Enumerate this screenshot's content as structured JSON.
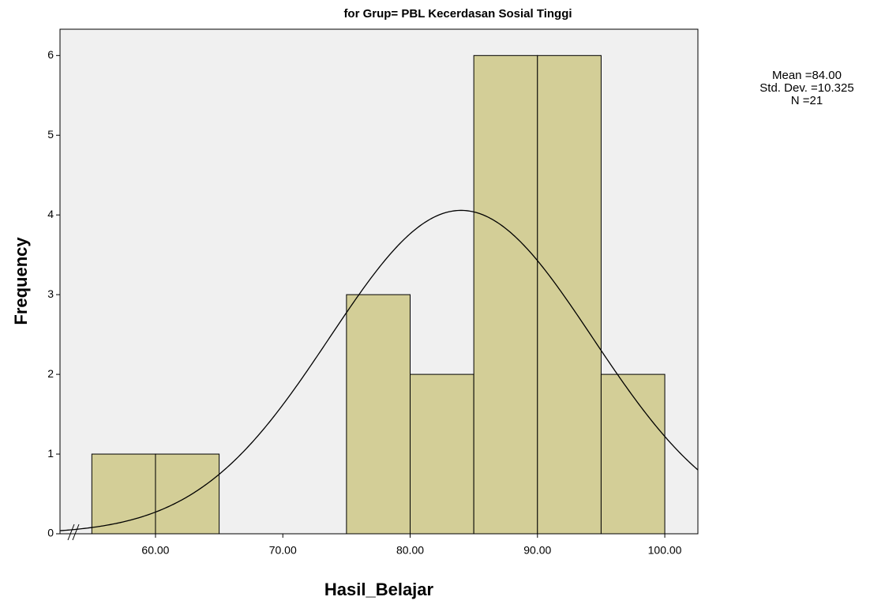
{
  "chart_data": {
    "type": "histogram",
    "title": "for Grup= PBL Kecerdasan Sosial Tinggi",
    "xlabel": "Hasil_Belajar",
    "ylabel": "Frequency",
    "bins": [
      55,
      60,
      65,
      70,
      75,
      80,
      85,
      90,
      95,
      100
    ],
    "counts": [
      1,
      1,
      0,
      0,
      3,
      2,
      6,
      6,
      2
    ],
    "color": "#d3ce97",
    "xlim": [
      52.5,
      102.6
    ],
    "xticks": [
      {
        "value": 60,
        "label": "60.00"
      },
      {
        "value": 70,
        "label": "70.00"
      },
      {
        "value": 80,
        "label": "80.00"
      },
      {
        "value": 90,
        "label": "90.00"
      },
      {
        "value": 100,
        "label": "100.00"
      }
    ],
    "ylim": [
      0,
      6.33
    ],
    "yticks": [
      0,
      1,
      2,
      3,
      4,
      5,
      6
    ],
    "stats": {
      "mean": 84,
      "sd": 10.325,
      "n": 21
    },
    "stats_labels": [
      "Mean =84.00",
      "Std. Dev. =10.325",
      "N =21"
    ]
  }
}
